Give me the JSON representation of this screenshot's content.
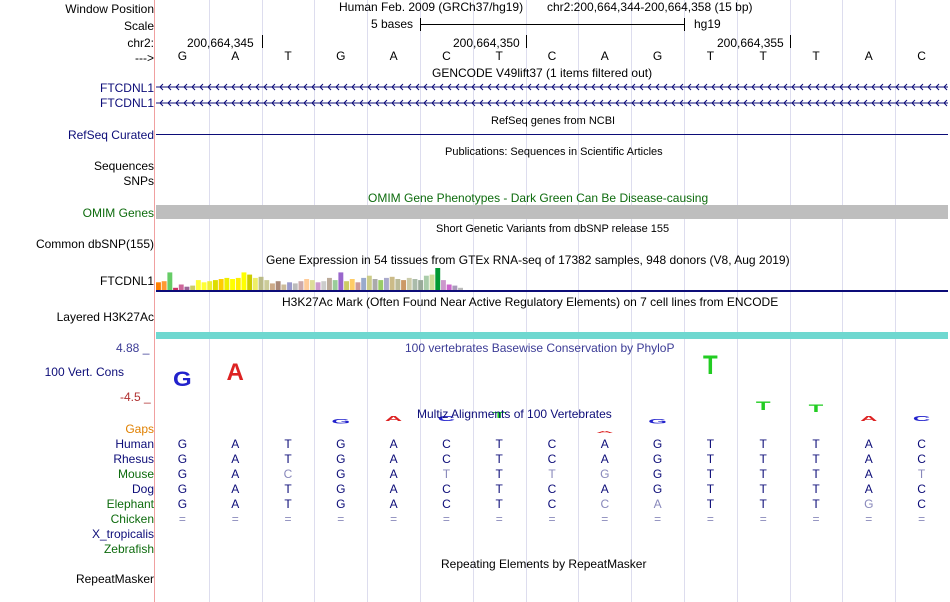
{
  "header": {
    "window_position_label": "Window Position",
    "scale_label": "Scale",
    "chrom_label": "chr2:",
    "arrow_label": "--->",
    "assembly": "Human Feb. 2009 (GRCh37/hg19)",
    "position": "chr2:200,664,344-200,664,358 (15 bp)",
    "scale_text": "5 bases",
    "db": "hg19",
    "coord1": "200,664,345",
    "coord2": "200,664,350",
    "coord3": "200,664,355"
  },
  "bases": [
    "G",
    "A",
    "T",
    "G",
    "A",
    "C",
    "T",
    "C",
    "A",
    "G",
    "T",
    "T",
    "T",
    "A",
    "C"
  ],
  "tracks": {
    "gencode_title": "GENCODE V49lift37 (1 items filtered out)",
    "gencode_item1": "FTCDNL1",
    "gencode_item2": "FTCDNL1",
    "refseq_label": "RefSeq Curated",
    "refseq_title": "RefSeq genes from NCBI",
    "pubs_title": "Publications: Sequences in Scientific Articles",
    "sequences_label": "Sequences",
    "snps_label": "SNPs",
    "omim_title": "OMIM Gene Phenotypes - Dark Green Can Be Disease-causing",
    "omim_label": "OMIM Genes",
    "dbsnp_title": "Short Genetic Variants from dbSNP release 155",
    "dbsnp_label": "Common dbSNP(155)",
    "gtex_title": "Gene Expression in 54 tissues from GTEx RNA-seq of 17382 samples, 948 donors (V8, Aug 2019)",
    "gtex_label": "FTCDNL1",
    "h3k27_title": "H3K27Ac Mark (Often Found Near Active Regulatory Elements) on 7 cell lines from ENCODE",
    "h3k27_label": "Layered H3K27Ac",
    "cons_title": "100 vertebrates Basewise Conservation by PhyloP",
    "cons_label": "100 Vert. Cons",
    "cons_max": "4.88 _",
    "cons_min": "-4.5 _",
    "multiz_title": "Multiz Alignments of 100 Vertebrates",
    "rmsk_title": "Repeating Elements by RepeatMasker",
    "rmsk_label": "RepeatMasker"
  },
  "colors": {
    "gencode": "#0c0c78",
    "omim": "#0d6b0d",
    "omim_bar": "#bebebe",
    "h3k27": "#6fd8d0",
    "cons": "#3c3c96",
    "cons_min": "#b03030",
    "gaps": "#e08000",
    "mammal": "#0c0c78",
    "vertebrate": "#0d6b0d"
  },
  "gtex_levels": [
    0.35,
    0.4,
    0.8,
    0.1,
    0.25,
    0.15,
    0.2,
    0.45,
    0.35,
    0.4,
    0.45,
    0.5,
    0.55,
    0.5,
    0.55,
    0.8,
    0.7,
    0.55,
    0.6,
    0.45,
    0.3,
    0.4,
    0.25,
    0.35,
    0.3,
    0.4,
    0.5,
    0.45,
    0.35,
    0.4,
    0.55,
    0.45,
    0.8,
    0.4,
    0.5,
    0.35,
    0.55,
    0.65,
    0.5,
    0.45,
    0.55,
    0.6,
    0.5,
    0.45,
    0.55,
    0.5,
    0.45,
    0.65,
    0.7,
    1.0,
    0.45,
    0.25,
    0.2,
    0.1
  ],
  "gtex_colors": [
    "#ff7f00",
    "#ff9933",
    "#66cc66",
    "#cc3366",
    "#cc6699",
    "#996699",
    "#cccc66",
    "#ffff33",
    "#ffff33",
    "#eeee33",
    "#dddd00",
    "#ffcc00",
    "#eeee00",
    "#ffff00",
    "#ffee00",
    "#ffff00",
    "#cccc00",
    "#eeee66",
    "#bbbb88",
    "#cccc99",
    "#ccaa88",
    "#aa8877",
    "#ccbb99",
    "#9999cc",
    "#bbbbbb",
    "#ccaaaa",
    "#ffcc99",
    "#dddd99",
    "#cc99cc",
    "#cccccc",
    "#bbaa99",
    "#99cc99",
    "#9966cc",
    "#cccc66",
    "#ffcc66",
    "#cc9999",
    "#99aacc",
    "#cccc88",
    "#aaaaaa",
    "#99cc66",
    "#aaaacc",
    "#ccbb88",
    "#bbbb99",
    "#cc9966",
    "#ccccaa",
    "#aabbaa",
    "#99aa99",
    "#aaccaa",
    "#ccdd99",
    "#009933",
    "#cc99cc",
    "#cc66cc",
    "#aa99bb",
    "#bbbbbb"
  ],
  "cons_values": [
    0.9,
    1.0,
    0,
    0.25,
    0.3,
    0.3,
    0.35,
    0,
    0.1,
    0.25,
    1.1,
    0.5,
    0.45,
    0.3,
    0.3
  ],
  "species": [
    {
      "name": "Gaps",
      "kind": "gaps",
      "bases": []
    },
    {
      "name": "Human",
      "kind": "mammal",
      "bases": [
        "G",
        "A",
        "T",
        "G",
        "A",
        "C",
        "T",
        "C",
        "A",
        "G",
        "T",
        "T",
        "T",
        "A",
        "C"
      ],
      "faded": []
    },
    {
      "name": "Rhesus",
      "kind": "mammal",
      "bases": [
        "G",
        "A",
        "T",
        "G",
        "A",
        "C",
        "T",
        "C",
        "A",
        "G",
        "T",
        "T",
        "T",
        "A",
        "C"
      ],
      "faded": []
    },
    {
      "name": "Mouse",
      "kind": "vertebrate",
      "bases": [
        "G",
        "A",
        "C",
        "G",
        "A",
        "T",
        "T",
        "T",
        "G",
        "G",
        "T",
        "T",
        "T",
        "A",
        "T"
      ],
      "faded": [
        2,
        5,
        7,
        8,
        14
      ]
    },
    {
      "name": "Dog",
      "kind": "mammal",
      "bases": [
        "G",
        "A",
        "T",
        "G",
        "A",
        "C",
        "T",
        "C",
        "A",
        "G",
        "T",
        "T",
        "T",
        "A",
        "C"
      ],
      "faded": []
    },
    {
      "name": "Elephant",
      "kind": "vertebrate",
      "bases": [
        "G",
        "A",
        "T",
        "G",
        "A",
        "C",
        "T",
        "C",
        "C",
        "A",
        "T",
        "T",
        "T",
        "G",
        "C"
      ],
      "faded": [
        8,
        9,
        13
      ]
    },
    {
      "name": "Chicken",
      "kind": "vertebrate",
      "bases": [
        "=",
        "=",
        "=",
        "=",
        "=",
        "=",
        "=",
        "=",
        "=",
        "=",
        "=",
        "=",
        "=",
        "=",
        "="
      ],
      "faded": [
        0,
        1,
        2,
        3,
        4,
        5,
        6,
        7,
        8,
        9,
        10,
        11,
        12,
        13,
        14
      ]
    },
    {
      "name": "X_tropicalis",
      "kind": "mammal",
      "bases": [],
      "faded": []
    },
    {
      "name": "Zebrafish",
      "kind": "vertebrate",
      "bases": [],
      "faded": []
    }
  ]
}
